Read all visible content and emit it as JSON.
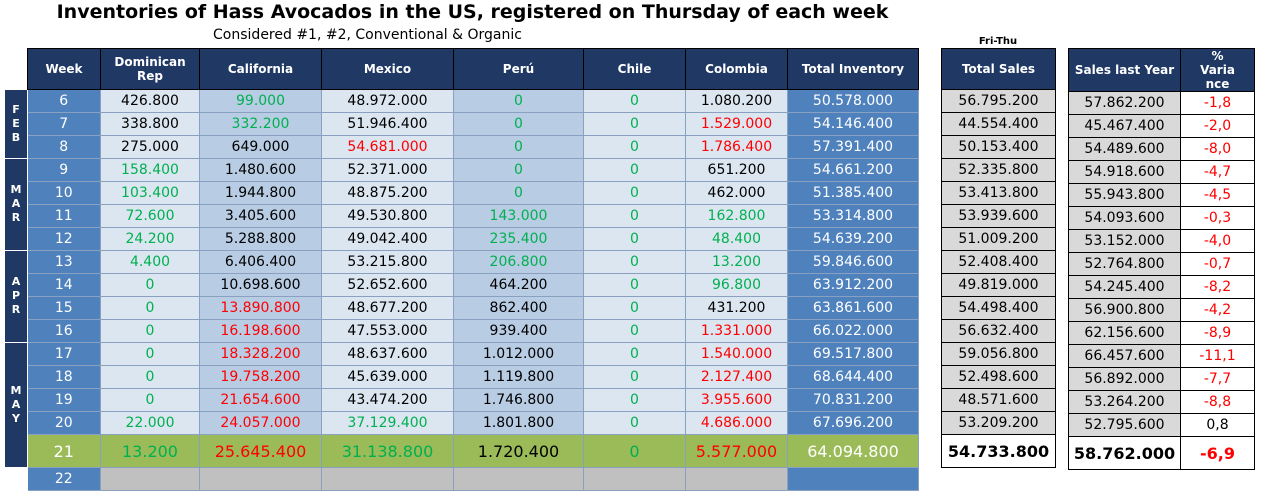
{
  "chart_data": [
    {
      "type": "table",
      "title": "Inventories of Hass Avocados in the US, registered on Thursday of each week",
      "subtitle": "Considered #1, #2, Conventional & Organic",
      "columns": [
        "Week",
        "Dominican Rep",
        "California",
        "Mexico",
        "Perú",
        "Chile",
        "Colombia",
        "Total Inventory"
      ],
      "months": [
        {
          "label": "FEB",
          "weeks": 3
        },
        {
          "label": "MAR",
          "weeks": 4
        },
        {
          "label": "APR",
          "weeks": 4
        },
        {
          "label": "MAY",
          "weeks": 5
        }
      ],
      "rows": [
        {
          "week": "6",
          "dominican": "426.800",
          "california": "99.000",
          "mexico": "48.972.000",
          "peru": "0",
          "chile": "0",
          "colombia": "1.080.200",
          "total": "50.578.000"
        },
        {
          "week": "7",
          "dominican": "338.800",
          "california": "332.200",
          "mexico": "51.946.400",
          "peru": "0",
          "chile": "0",
          "colombia": "1.529.000",
          "total": "54.146.400"
        },
        {
          "week": "8",
          "dominican": "275.000",
          "california": "649.000",
          "mexico": "54.681.000",
          "peru": "0",
          "chile": "0",
          "colombia": "1.786.400",
          "total": "57.391.400"
        },
        {
          "week": "9",
          "dominican": "158.400",
          "california": "1.480.600",
          "mexico": "52.371.000",
          "peru": "0",
          "chile": "0",
          "colombia": "651.200",
          "total": "54.661.200"
        },
        {
          "week": "10",
          "dominican": "103.400",
          "california": "1.944.800",
          "mexico": "48.875.200",
          "peru": "0",
          "chile": "0",
          "colombia": "462.000",
          "total": "51.385.400"
        },
        {
          "week": "11",
          "dominican": "72.600",
          "california": "3.405.600",
          "mexico": "49.530.800",
          "peru": "143.000",
          "chile": "0",
          "colombia": "162.800",
          "total": "53.314.800"
        },
        {
          "week": "12",
          "dominican": "24.200",
          "california": "5.288.800",
          "mexico": "49.042.400",
          "peru": "235.400",
          "chile": "0",
          "colombia": "48.400",
          "total": "54.639.200"
        },
        {
          "week": "13",
          "dominican": "4.400",
          "california": "6.406.400",
          "mexico": "53.215.800",
          "peru": "206.800",
          "chile": "0",
          "colombia": "13.200",
          "total": "59.846.600"
        },
        {
          "week": "14",
          "dominican": "0",
          "california": "10.698.600",
          "mexico": "52.652.600",
          "peru": "464.200",
          "chile": "0",
          "colombia": "96.800",
          "total": "63.912.200"
        },
        {
          "week": "15",
          "dominican": "0",
          "california": "13.890.800",
          "mexico": "48.677.200",
          "peru": "862.400",
          "chile": "0",
          "colombia": "431.200",
          "total": "63.861.600"
        },
        {
          "week": "16",
          "dominican": "0",
          "california": "16.198.600",
          "mexico": "47.553.000",
          "peru": "939.400",
          "chile": "0",
          "colombia": "1.331.000",
          "total": "66.022.000"
        },
        {
          "week": "17",
          "dominican": "0",
          "california": "18.328.200",
          "mexico": "48.637.600",
          "peru": "1.012.000",
          "chile": "0",
          "colombia": "1.540.000",
          "total": "69.517.800"
        },
        {
          "week": "18",
          "dominican": "0",
          "california": "19.758.200",
          "mexico": "45.639.000",
          "peru": "1.119.800",
          "chile": "0",
          "colombia": "2.127.400",
          "total": "68.644.400"
        },
        {
          "week": "19",
          "dominican": "0",
          "california": "21.654.600",
          "mexico": "43.474.200",
          "peru": "1.746.800",
          "chile": "0",
          "colombia": "3.955.600",
          "total": "70.831.200"
        },
        {
          "week": "20",
          "dominican": "22.000",
          "california": "24.057.000",
          "mexico": "37.129.400",
          "peru": "1.801.800",
          "chile": "0",
          "colombia": "4.686.000",
          "total": "67.696.200"
        },
        {
          "week": "21",
          "dominican": "13.200",
          "california": "25.645.400",
          "mexico": "31.138.800",
          "peru": "1.720.400",
          "chile": "0",
          "colombia": "5.577.000",
          "total": "64.094.800"
        },
        {
          "week": "22",
          "dominican": "",
          "california": "",
          "mexico": "",
          "peru": "",
          "chile": "",
          "colombia": "",
          "total": ""
        }
      ]
    },
    {
      "type": "table",
      "header_note": "Fri-Thu",
      "columns": [
        "Total Sales"
      ],
      "rows": [
        "56.795.200",
        "44.554.400",
        "50.153.400",
        "52.335.800",
        "53.413.800",
        "53.939.600",
        "51.009.200",
        "52.408.400",
        "49.819.000",
        "54.498.400",
        "56.632.400",
        "59.056.800",
        "52.498.600",
        "48.571.600",
        "53.209.200",
        "54.733.800"
      ]
    },
    {
      "type": "table",
      "columns": [
        "Sales last Year",
        "% Variance"
      ],
      "rows": [
        {
          "last_year": "57.862.200",
          "variance": "-1,8"
        },
        {
          "last_year": "45.467.400",
          "variance": "-2,0"
        },
        {
          "last_year": "54.489.600",
          "variance": "-8,0"
        },
        {
          "last_year": "54.918.600",
          "variance": "-4,7"
        },
        {
          "last_year": "55.943.800",
          "variance": "-4,5"
        },
        {
          "last_year": "54.093.600",
          "variance": "-0,3"
        },
        {
          "last_year": "53.152.000",
          "variance": "-4,0"
        },
        {
          "last_year": "52.764.800",
          "variance": "-0,7"
        },
        {
          "last_year": "54.245.400",
          "variance": "-8,2"
        },
        {
          "last_year": "56.900.800",
          "variance": "-4,2"
        },
        {
          "last_year": "62.156.600",
          "variance": "-8,9"
        },
        {
          "last_year": "66.457.600",
          "variance": "-11,1"
        },
        {
          "last_year": "56.892.000",
          "variance": "-7,7"
        },
        {
          "last_year": "53.264.200",
          "variance": "-8,8"
        },
        {
          "last_year": "52.795.600",
          "variance": "0,8"
        },
        {
          "last_year": "58.762.000",
          "variance": "-6,9"
        }
      ]
    }
  ],
  "colors": {
    "header": "#1f3864",
    "cell_light": "#dce6f1",
    "cell_mid": "#b8cce4",
    "cell_dark": "#4f81bd",
    "highlight_row": "#9bbb59",
    "sales_cell": "#d9d9d9",
    "positive_text": "#00b050",
    "negative_text": "#ff0000"
  }
}
